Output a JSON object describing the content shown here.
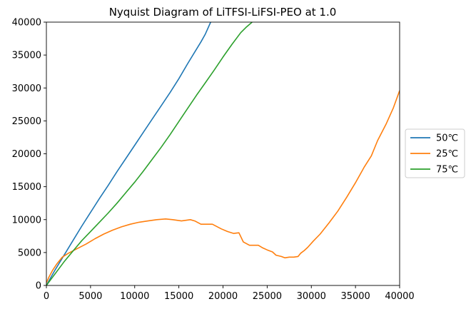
{
  "chart_data": {
    "type": "line",
    "title": "Nyquist Diagram of LiTFSI-LiFSI-PEO at 1.0",
    "xlabel": "",
    "ylabel": "",
    "xlim": [
      0,
      40000
    ],
    "ylim": [
      0,
      40000
    ],
    "xticks": [
      0,
      5000,
      10000,
      15000,
      20000,
      25000,
      30000,
      35000,
      40000
    ],
    "yticks": [
      0,
      5000,
      10000,
      15000,
      20000,
      25000,
      30000,
      35000,
      40000
    ],
    "legend_position": "right-outside",
    "grid": false,
    "series": [
      {
        "name": "50℃",
        "color": "#1f77b4",
        "points": [
          [
            0,
            0
          ],
          [
            500,
            1200
          ],
          [
            1000,
            2400
          ],
          [
            2000,
            4600
          ],
          [
            3000,
            6800
          ],
          [
            4000,
            9000
          ],
          [
            5000,
            11100
          ],
          [
            6000,
            13200
          ],
          [
            7000,
            15200
          ],
          [
            8000,
            17300
          ],
          [
            9000,
            19300
          ],
          [
            10000,
            21300
          ],
          [
            11000,
            23300
          ],
          [
            12000,
            25300
          ],
          [
            13000,
            27300
          ],
          [
            14000,
            29300
          ],
          [
            15000,
            31400
          ],
          [
            16000,
            33700
          ],
          [
            17000,
            35900
          ],
          [
            17500,
            37000
          ],
          [
            18000,
            38200
          ],
          [
            18600,
            40000
          ]
        ]
      },
      {
        "name": "25℃",
        "color": "#ff7f0e",
        "points": [
          [
            0,
            400
          ],
          [
            300,
            1300
          ],
          [
            700,
            2300
          ],
          [
            1200,
            3300
          ],
          [
            1800,
            4300
          ],
          [
            2500,
            4900
          ],
          [
            3500,
            5600
          ],
          [
            4500,
            6300
          ],
          [
            5500,
            7100
          ],
          [
            6500,
            7800
          ],
          [
            7500,
            8400
          ],
          [
            8500,
            8900
          ],
          [
            9500,
            9300
          ],
          [
            10500,
            9600
          ],
          [
            11500,
            9800
          ],
          [
            12500,
            10000
          ],
          [
            13500,
            10100
          ],
          [
            14300,
            10000
          ],
          [
            15300,
            9800
          ],
          [
            16300,
            10000
          ],
          [
            16800,
            9800
          ],
          [
            17500,
            9300
          ],
          [
            18800,
            9300
          ],
          [
            19800,
            8600
          ],
          [
            20500,
            8200
          ],
          [
            21200,
            7900
          ],
          [
            21800,
            8000
          ],
          [
            22300,
            6600
          ],
          [
            23000,
            6100
          ],
          [
            24000,
            6100
          ],
          [
            24500,
            5700
          ],
          [
            25000,
            5400
          ],
          [
            25600,
            5100
          ],
          [
            26000,
            4600
          ],
          [
            26600,
            4400
          ],
          [
            27000,
            4200
          ],
          [
            27500,
            4300
          ],
          [
            28000,
            4300
          ],
          [
            28500,
            4400
          ],
          [
            28800,
            4900
          ],
          [
            29200,
            5300
          ],
          [
            29600,
            5800
          ],
          [
            30200,
            6700
          ],
          [
            31000,
            7800
          ],
          [
            32000,
            9500
          ],
          [
            33000,
            11300
          ],
          [
            34000,
            13400
          ],
          [
            35000,
            15600
          ],
          [
            36000,
            18000
          ],
          [
            36800,
            19700
          ],
          [
            37500,
            22000
          ],
          [
            38500,
            24600
          ],
          [
            39300,
            27000
          ],
          [
            40000,
            29600
          ]
        ]
      },
      {
        "name": "75℃",
        "color": "#2ca02c",
        "points": [
          [
            0,
            0
          ],
          [
            500,
            900
          ],
          [
            1000,
            1800
          ],
          [
            2000,
            3600
          ],
          [
            3000,
            5200
          ],
          [
            4000,
            6800
          ],
          [
            5000,
            8200
          ],
          [
            6000,
            9600
          ],
          [
            7000,
            11000
          ],
          [
            8000,
            12500
          ],
          [
            9000,
            14100
          ],
          [
            10000,
            15700
          ],
          [
            11000,
            17400
          ],
          [
            12000,
            19200
          ],
          [
            13000,
            21000
          ],
          [
            14000,
            22900
          ],
          [
            15000,
            24900
          ],
          [
            16000,
            26900
          ],
          [
            17000,
            28900
          ],
          [
            18000,
            30800
          ],
          [
            19000,
            32700
          ],
          [
            20000,
            34700
          ],
          [
            21000,
            36600
          ],
          [
            22000,
            38400
          ],
          [
            22600,
            39200
          ],
          [
            23300,
            40000
          ]
        ]
      }
    ]
  }
}
